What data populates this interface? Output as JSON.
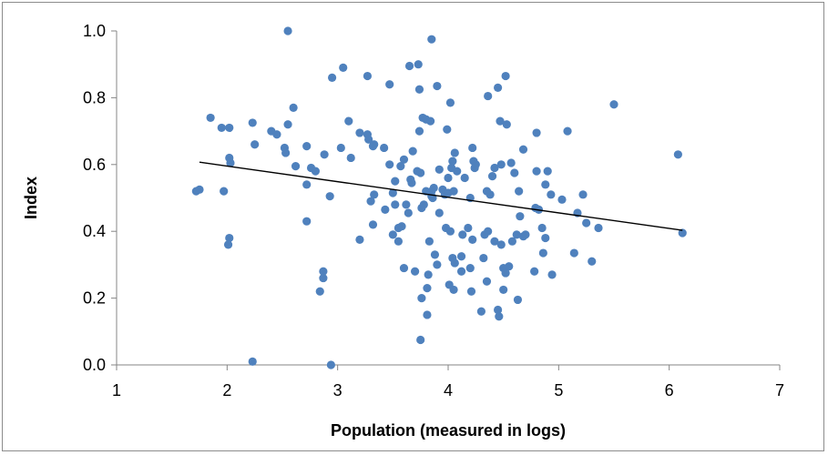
{
  "chart_data": {
    "type": "scatter",
    "title": "",
    "xlabel": "Population (measured in logs)",
    "ylabel": "Index",
    "xlim": [
      1,
      7
    ],
    "ylim": [
      0,
      1
    ],
    "x_ticks": [
      "1",
      "2",
      "3",
      "4",
      "5",
      "6",
      "7"
    ],
    "y_ticks": [
      "0.0",
      "0.2",
      "0.4",
      "0.6",
      "0.8",
      "1.0"
    ],
    "grid": false,
    "legend": "none",
    "point_color": "#4f81bd",
    "trendline": {
      "type": "linear",
      "color": "#000000",
      "x": [
        1.75,
        6.12
      ],
      "y": [
        0.607,
        0.403
      ]
    },
    "series": [
      {
        "points": [
          [
            1.72,
            0.52
          ],
          [
            1.75,
            0.525
          ],
          [
            1.85,
            0.74
          ],
          [
            1.95,
            0.71
          ],
          [
            1.97,
            0.52
          ],
          [
            2.02,
            0.62
          ],
          [
            2.02,
            0.71
          ],
          [
            2.03,
            0.605
          ],
          [
            2.02,
            0.38
          ],
          [
            2.01,
            0.36
          ],
          [
            2.23,
            0.01
          ],
          [
            2.23,
            0.725
          ],
          [
            2.25,
            0.66
          ],
          [
            2.4,
            0.7
          ],
          [
            2.45,
            0.69
          ],
          [
            2.52,
            0.65
          ],
          [
            2.55,
            0.72
          ],
          [
            2.55,
            1.0
          ],
          [
            2.53,
            0.635
          ],
          [
            2.6,
            0.77
          ],
          [
            2.62,
            0.595
          ],
          [
            2.72,
            0.655
          ],
          [
            2.72,
            0.43
          ],
          [
            2.72,
            0.54
          ],
          [
            2.76,
            0.59
          ],
          [
            2.8,
            0.58
          ],
          [
            2.84,
            0.22
          ],
          [
            2.87,
            0.26
          ],
          [
            2.87,
            0.28
          ],
          [
            2.88,
            0.63
          ],
          [
            2.93,
            0.505
          ],
          [
            2.95,
            0.86
          ],
          [
            2.94,
            0.0
          ],
          [
            3.03,
            0.65
          ],
          [
            3.05,
            0.89
          ],
          [
            3.1,
            0.73
          ],
          [
            3.12,
            0.62
          ],
          [
            3.2,
            0.695
          ],
          [
            3.2,
            0.375
          ],
          [
            3.27,
            0.865
          ],
          [
            3.27,
            0.69
          ],
          [
            3.28,
            0.675
          ],
          [
            3.3,
            0.49
          ],
          [
            3.32,
            0.655
          ],
          [
            3.32,
            0.42
          ],
          [
            3.33,
            0.66
          ],
          [
            3.33,
            0.51
          ],
          [
            3.42,
            0.65
          ],
          [
            3.43,
            0.465
          ],
          [
            3.47,
            0.84
          ],
          [
            3.47,
            0.6
          ],
          [
            3.5,
            0.39
          ],
          [
            3.5,
            0.515
          ],
          [
            3.52,
            0.55
          ],
          [
            3.52,
            0.48
          ],
          [
            3.55,
            0.37
          ],
          [
            3.55,
            0.41
          ],
          [
            3.57,
            0.595
          ],
          [
            3.58,
            0.415
          ],
          [
            3.6,
            0.29
          ],
          [
            3.6,
            0.615
          ],
          [
            3.62,
            0.48
          ],
          [
            3.64,
            0.455
          ],
          [
            3.65,
            0.895
          ],
          [
            3.66,
            0.555
          ],
          [
            3.67,
            0.545
          ],
          [
            3.68,
            0.64
          ],
          [
            3.7,
            0.28
          ],
          [
            3.72,
            0.58
          ],
          [
            3.73,
            0.9
          ],
          [
            3.74,
            0.7
          ],
          [
            3.75,
            0.575
          ],
          [
            3.74,
            0.825
          ],
          [
            3.75,
            0.075
          ],
          [
            3.76,
            0.2
          ],
          [
            3.76,
            0.47
          ],
          [
            3.77,
            0.74
          ],
          [
            3.78,
            0.48
          ],
          [
            3.8,
            0.52
          ],
          [
            3.8,
            0.735
          ],
          [
            3.81,
            0.15
          ],
          [
            3.81,
            0.23
          ],
          [
            3.82,
            0.27
          ],
          [
            3.83,
            0.37
          ],
          [
            3.84,
            0.73
          ],
          [
            3.85,
            0.975
          ],
          [
            3.85,
            0.52
          ],
          [
            3.85,
            0.505
          ],
          [
            3.86,
            0.5
          ],
          [
            3.87,
            0.53
          ],
          [
            3.88,
            0.33
          ],
          [
            3.9,
            0.835
          ],
          [
            3.9,
            0.3
          ],
          [
            3.92,
            0.455
          ],
          [
            3.92,
            0.585
          ],
          [
            3.95,
            0.525
          ],
          [
            3.97,
            0.51
          ],
          [
            3.98,
            0.41
          ],
          [
            3.99,
            0.705
          ],
          [
            4.0,
            0.56
          ],
          [
            4.0,
            0.515
          ],
          [
            4.01,
            0.24
          ],
          [
            4.02,
            0.785
          ],
          [
            4.02,
            0.4
          ],
          [
            4.03,
            0.59
          ],
          [
            4.04,
            0.61
          ],
          [
            4.04,
            0.32
          ],
          [
            4.05,
            0.225
          ],
          [
            4.05,
            0.52
          ],
          [
            4.06,
            0.305
          ],
          [
            4.06,
            0.635
          ],
          [
            4.08,
            0.58
          ],
          [
            4.12,
            0.28
          ],
          [
            4.12,
            0.325
          ],
          [
            4.13,
            0.39
          ],
          [
            4.15,
            0.56
          ],
          [
            4.18,
            0.41
          ],
          [
            4.2,
            0.29
          ],
          [
            4.2,
            0.5
          ],
          [
            4.21,
            0.22
          ],
          [
            4.22,
            0.375
          ],
          [
            4.22,
            0.65
          ],
          [
            4.23,
            0.61
          ],
          [
            4.24,
            0.59
          ],
          [
            4.25,
            0.6
          ],
          [
            4.3,
            0.16
          ],
          [
            4.32,
            0.32
          ],
          [
            4.33,
            0.39
          ],
          [
            4.35,
            0.52
          ],
          [
            4.35,
            0.25
          ],
          [
            4.36,
            0.805
          ],
          [
            4.36,
            0.4
          ],
          [
            4.38,
            0.51
          ],
          [
            4.4,
            0.565
          ],
          [
            4.42,
            0.37
          ],
          [
            4.42,
            0.59
          ],
          [
            4.45,
            0.83
          ],
          [
            4.45,
            0.165
          ],
          [
            4.46,
            0.145
          ],
          [
            4.47,
            0.73
          ],
          [
            4.48,
            0.36
          ],
          [
            4.48,
            0.6
          ],
          [
            4.5,
            0.29
          ],
          [
            4.5,
            0.225
          ],
          [
            4.52,
            0.865
          ],
          [
            4.52,
            0.275
          ],
          [
            4.53,
            0.72
          ],
          [
            4.55,
            0.295
          ],
          [
            4.57,
            0.605
          ],
          [
            4.58,
            0.37
          ],
          [
            4.6,
            0.575
          ],
          [
            4.62,
            0.39
          ],
          [
            4.63,
            0.195
          ],
          [
            4.64,
            0.52
          ],
          [
            4.65,
            0.445
          ],
          [
            4.68,
            0.385
          ],
          [
            4.68,
            0.645
          ],
          [
            4.7,
            0.39
          ],
          [
            4.78,
            0.28
          ],
          [
            4.79,
            0.47
          ],
          [
            4.8,
            0.58
          ],
          [
            4.8,
            0.695
          ],
          [
            4.82,
            0.465
          ],
          [
            4.85,
            0.41
          ],
          [
            4.86,
            0.335
          ],
          [
            4.88,
            0.54
          ],
          [
            4.88,
            0.38
          ],
          [
            4.9,
            0.58
          ],
          [
            4.93,
            0.51
          ],
          [
            4.94,
            0.27
          ],
          [
            5.03,
            0.495
          ],
          [
            5.08,
            0.7
          ],
          [
            5.14,
            0.335
          ],
          [
            5.17,
            0.455
          ],
          [
            5.22,
            0.51
          ],
          [
            5.25,
            0.425
          ],
          [
            5.3,
            0.31
          ],
          [
            5.36,
            0.41
          ],
          [
            5.5,
            0.78
          ],
          [
            6.08,
            0.63
          ],
          [
            6.12,
            0.395
          ]
        ]
      }
    ]
  }
}
